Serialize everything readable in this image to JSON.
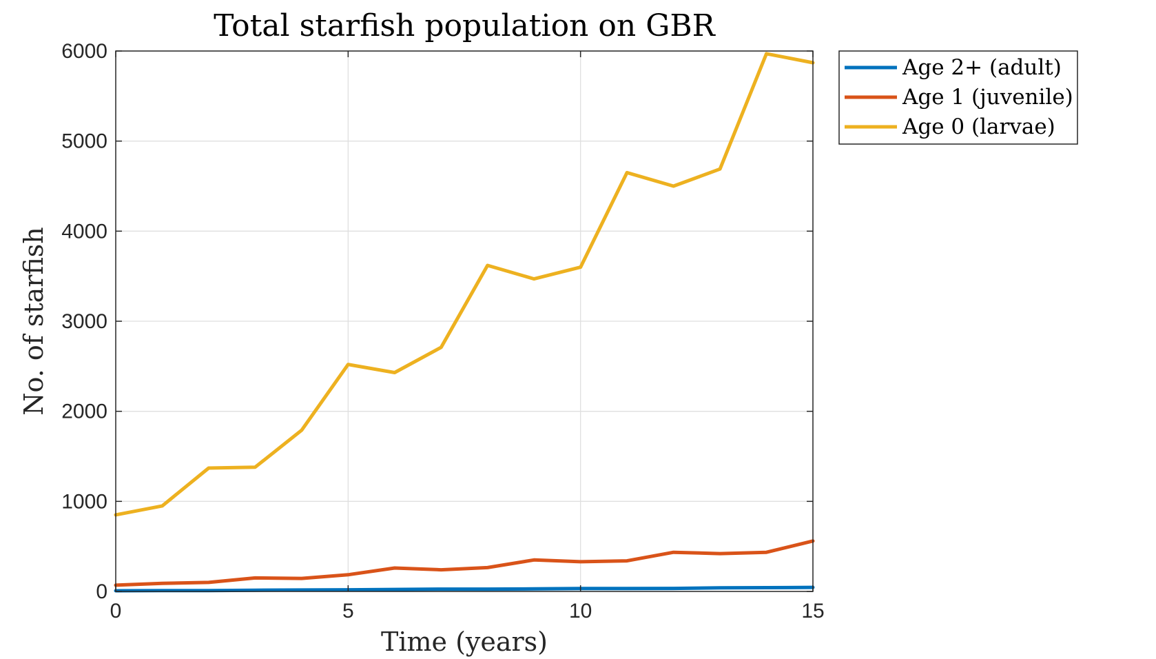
{
  "chart_data": {
    "type": "line",
    "title": "Total starfish population on GBR",
    "xlabel": "Time (years)",
    "ylabel": "No. of starfish",
    "xlim": [
      0,
      15
    ],
    "ylim": [
      0,
      6000
    ],
    "xticks": [
      0,
      5,
      10,
      15
    ],
    "yticks": [
      0,
      1000,
      2000,
      3000,
      4000,
      5000,
      6000
    ],
    "grid": true,
    "legend_position": "outside-top-right",
    "x": [
      0,
      1,
      2,
      3,
      4,
      5,
      6,
      7,
      8,
      9,
      10,
      11,
      12,
      13,
      14,
      15
    ],
    "series": [
      {
        "name": "Age 2+ (adult)",
        "color": "#0072BD",
        "values": [
          8,
          10,
          10,
          14,
          16,
          18,
          22,
          26,
          26,
          28,
          32,
          32,
          34,
          40,
          42,
          45
        ]
      },
      {
        "name": "Age 1 (juvenile)",
        "color": "#D95319",
        "values": [
          70,
          90,
          100,
          150,
          145,
          185,
          260,
          240,
          265,
          350,
          330,
          340,
          435,
          420,
          435,
          560
        ]
      },
      {
        "name": "Age 0 (larvae)",
        "color": "#EDB120",
        "values": [
          850,
          950,
          1370,
          1380,
          1790,
          2520,
          2430,
          2710,
          3620,
          3470,
          3600,
          4650,
          4500,
          4690,
          5970,
          5870
        ]
      }
    ]
  }
}
